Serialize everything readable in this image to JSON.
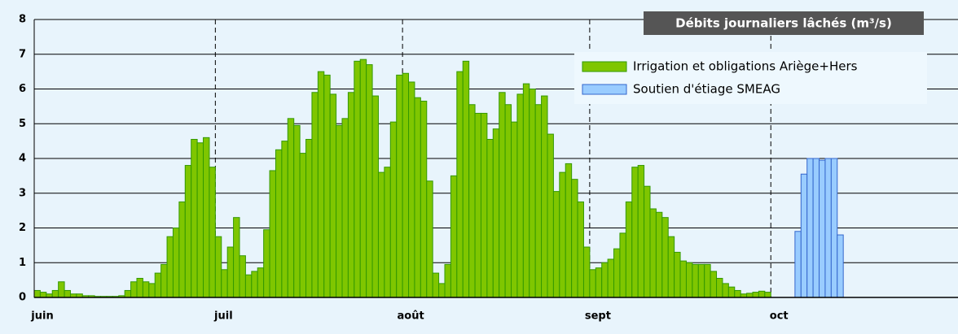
{
  "chart_data": {
    "type": "bar",
    "title": "Débits journaliers lâchés (m³/s)",
    "categories": [
      "juin",
      null,
      null,
      null,
      null,
      null,
      null,
      null,
      null,
      null,
      null,
      null,
      null,
      null,
      null,
      null,
      null,
      null,
      null,
      null,
      null,
      null,
      null,
      null,
      null,
      null,
      null,
      null,
      null,
      null,
      "juil",
      null,
      null,
      null,
      null,
      null,
      null,
      null,
      null,
      null,
      null,
      null,
      null,
      null,
      null,
      null,
      null,
      null,
      null,
      null,
      null,
      null,
      null,
      null,
      null,
      null,
      null,
      null,
      null,
      null,
      null,
      "août",
      null,
      null,
      null,
      null,
      null,
      null,
      null,
      null,
      null,
      null,
      null,
      null,
      null,
      null,
      null,
      null,
      null,
      null,
      null,
      null,
      null,
      null,
      null,
      null,
      null,
      null,
      null,
      null,
      null,
      null,
      "sept",
      null,
      null,
      null,
      null,
      null,
      null,
      null,
      null,
      null,
      null,
      null,
      null,
      null,
      null,
      null,
      null,
      null,
      null,
      null,
      null,
      null,
      null,
      null,
      null,
      null,
      null,
      null,
      null,
      null,
      "oct",
      null,
      null,
      null,
      null,
      null,
      null,
      null,
      null,
      null,
      null,
      null,
      null,
      null,
      null,
      null,
      null,
      null,
      null,
      null,
      null,
      null,
      null,
      null,
      null,
      null,
      null,
      null,
      null,
      null,
      null
    ],
    "series": [
      {
        "name": "Irrigation et obligations Ariège+Hers",
        "color": "#7fc600",
        "values": [
          0.2,
          0.15,
          0.1,
          0.2,
          0.45,
          0.2,
          0.1,
          0.1,
          0.05,
          0.05,
          0.03,
          0.03,
          0.03,
          0.03,
          0.05,
          0.2,
          0.45,
          0.55,
          0.45,
          0.4,
          0.7,
          0.95,
          1.75,
          2.0,
          2.75,
          3.8,
          4.55,
          4.45,
          4.6,
          3.75,
          1.75,
          0.8,
          1.45,
          2.3,
          1.2,
          0.65,
          0.75,
          0.85,
          1.95,
          3.65,
          4.25,
          4.5,
          5.15,
          4.95,
          4.15,
          4.55,
          5.9,
          6.5,
          6.4,
          5.85,
          4.95,
          5.15,
          5.9,
          6.8,
          6.85,
          6.7,
          5.8,
          3.6,
          3.75,
          5.05,
          6.4,
          6.45,
          6.2,
          5.75,
          5.65,
          3.35,
          0.7,
          0.4,
          0.95,
          3.5,
          6.5,
          6.8,
          5.55,
          5.3,
          5.3,
          4.55,
          4.85,
          5.9,
          5.55,
          5.05,
          5.85,
          6.15,
          6.0,
          5.55,
          5.8,
          4.7,
          3.05,
          3.6,
          3.85,
          3.4,
          2.75,
          1.45,
          0.8,
          0.85,
          1.0,
          1.1,
          1.4,
          1.85,
          2.75,
          3.75,
          3.8,
          3.2,
          2.55,
          2.45,
          2.3,
          1.75,
          1.3,
          1.05,
          1.0,
          0.95,
          0.95,
          0.95,
          0.75,
          0.55,
          0.4,
          0.3,
          0.2,
          0.1,
          0.12,
          0.15,
          0.18,
          0.15,
          null,
          null,
          null,
          null,
          null,
          null,
          null,
          null,
          null,
          null,
          null,
          null,
          null,
          null,
          null,
          null,
          null,
          null,
          null,
          null,
          null,
          null,
          null,
          null,
          null,
          null,
          null,
          null,
          null,
          null,
          null
        ]
      },
      {
        "name": "Soutien d'étiage SMEAG",
        "color": "#99ccff",
        "values": [
          null,
          null,
          null,
          null,
          null,
          null,
          null,
          null,
          null,
          null,
          null,
          null,
          null,
          null,
          null,
          null,
          null,
          null,
          null,
          null,
          null,
          null,
          null,
          null,
          null,
          null,
          null,
          null,
          null,
          null,
          null,
          null,
          null,
          null,
          null,
          null,
          null,
          null,
          null,
          null,
          null,
          null,
          null,
          null,
          null,
          null,
          null,
          null,
          null,
          null,
          null,
          null,
          null,
          null,
          null,
          null,
          null,
          null,
          null,
          null,
          null,
          null,
          null,
          null,
          null,
          null,
          null,
          null,
          null,
          null,
          null,
          null,
          null,
          null,
          null,
          null,
          null,
          null,
          null,
          null,
          null,
          null,
          null,
          null,
          null,
          null,
          null,
          null,
          null,
          null,
          null,
          null,
          null,
          null,
          null,
          null,
          null,
          null,
          null,
          null,
          null,
          null,
          null,
          null,
          null,
          null,
          null,
          null,
          null,
          null,
          null,
          null,
          null,
          null,
          null,
          null,
          null,
          null,
          null,
          null,
          null,
          null,
          null,
          null,
          null,
          null,
          1.9,
          3.55,
          4.0,
          4.0,
          3.95,
          4.0,
          4.0,
          1.8,
          null,
          null,
          null,
          null,
          null,
          null,
          null,
          null,
          null,
          null,
          null,
          null,
          null,
          null,
          null,
          null,
          null,
          null,
          null
        ]
      }
    ],
    "ylim": [
      0,
      8
    ],
    "yticks": [
      0,
      1,
      2,
      3,
      4,
      5,
      6,
      7,
      8
    ],
    "grid": true,
    "legend": "top-right"
  }
}
